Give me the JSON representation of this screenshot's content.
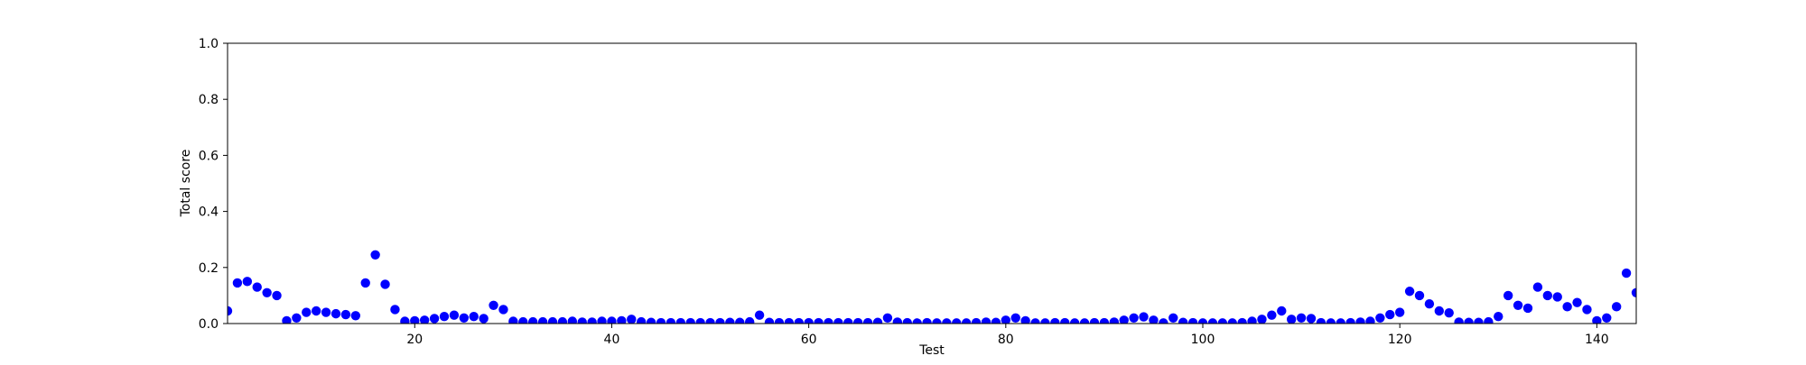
{
  "chart_data": {
    "type": "scatter",
    "title": "",
    "xlabel": "Test",
    "ylabel": "Total score",
    "xlim": [
      1,
      144
    ],
    "ylim": [
      0.0,
      1.0
    ],
    "xticks": [
      20,
      40,
      60,
      80,
      100,
      120,
      140
    ],
    "yticks": [
      0.0,
      0.2,
      0.4,
      0.6,
      0.8,
      1.0
    ],
    "ytick_labels": [
      "0.0",
      "0.2",
      "0.4",
      "0.6",
      "0.8",
      "1.0"
    ],
    "grid": false,
    "legend": "none",
    "marker": "circle",
    "color": "#0000ff",
    "series": [
      {
        "x": [
          1,
          2,
          3,
          4,
          5,
          6,
          7,
          8,
          9,
          10,
          11,
          12,
          13,
          14,
          15,
          16,
          17,
          18,
          19,
          20,
          21,
          22,
          23,
          24,
          25,
          26,
          27,
          28,
          29,
          30,
          31,
          32,
          33,
          34,
          35,
          36,
          37,
          38,
          39,
          40,
          41,
          42,
          43,
          44,
          45,
          46,
          47,
          48,
          49,
          50,
          51,
          52,
          53,
          54,
          55,
          56,
          57,
          58,
          59,
          60,
          61,
          62,
          63,
          64,
          65,
          66,
          67,
          68,
          69,
          70,
          71,
          72,
          73,
          74,
          75,
          76,
          77,
          78,
          79,
          80,
          81,
          82,
          83,
          84,
          85,
          86,
          87,
          88,
          89,
          90,
          91,
          92,
          93,
          94,
          95,
          96,
          97,
          98,
          99,
          100,
          101,
          102,
          103,
          104,
          105,
          106,
          107,
          108,
          109,
          110,
          111,
          112,
          113,
          114,
          115,
          116,
          117,
          118,
          119,
          120,
          121,
          122,
          123,
          124,
          125,
          126,
          127,
          128,
          129,
          130,
          131,
          132,
          133,
          134,
          135,
          136,
          137,
          138,
          139,
          140,
          141,
          142,
          143,
          144
        ],
        "values": [
          0.045,
          0.145,
          0.15,
          0.13,
          0.11,
          0.1,
          0.01,
          0.02,
          0.04,
          0.045,
          0.04,
          0.035,
          0.032,
          0.028,
          0.145,
          0.245,
          0.14,
          0.05,
          0.008,
          0.01,
          0.012,
          0.018,
          0.025,
          0.03,
          0.02,
          0.025,
          0.018,
          0.065,
          0.05,
          0.008,
          0.006,
          0.006,
          0.006,
          0.006,
          0.006,
          0.008,
          0.005,
          0.005,
          0.008,
          0.008,
          0.01,
          0.015,
          0.006,
          0.004,
          0.003,
          0.003,
          0.003,
          0.003,
          0.003,
          0.003,
          0.003,
          0.004,
          0.004,
          0.006,
          0.03,
          0.004,
          0.003,
          0.003,
          0.003,
          0.003,
          0.003,
          0.003,
          0.003,
          0.003,
          0.003,
          0.003,
          0.004,
          0.02,
          0.005,
          0.003,
          0.002,
          0.003,
          0.002,
          0.002,
          0.002,
          0.002,
          0.003,
          0.005,
          0.004,
          0.012,
          0.02,
          0.01,
          0.002,
          0.002,
          0.003,
          0.003,
          0.002,
          0.002,
          0.003,
          0.003,
          0.005,
          0.012,
          0.02,
          0.024,
          0.012,
          0.002,
          0.02,
          0.004,
          0.003,
          0.002,
          0.002,
          0.002,
          0.002,
          0.003,
          0.008,
          0.015,
          0.03,
          0.045,
          0.015,
          0.02,
          0.018,
          0.003,
          0.002,
          0.002,
          0.003,
          0.005,
          0.008,
          0.02,
          0.032,
          0.04,
          0.115,
          0.1,
          0.07,
          0.045,
          0.038,
          0.005,
          0.004,
          0.004,
          0.006,
          0.025,
          0.1,
          0.065,
          0.055,
          0.13,
          0.1,
          0.095,
          0.06,
          0.075,
          0.05,
          0.01,
          0.02,
          0.06,
          0.18,
          0.11
        ]
      }
    ]
  }
}
